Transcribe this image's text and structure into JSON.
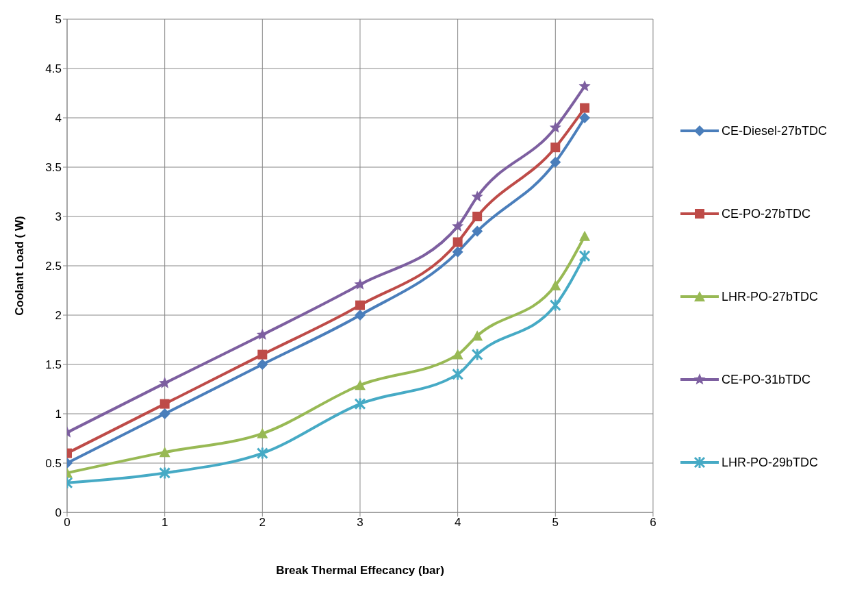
{
  "chart_data": {
    "type": "line",
    "xlabel": "Break Thermal Effecancy (bar)",
    "ylabel": "Coolant Load  ( W)",
    "xlim": [
      0,
      6
    ],
    "xticks": [
      0,
      1,
      2,
      3,
      4,
      5,
      6
    ],
    "ylim": [
      0,
      5
    ],
    "yticks": [
      0,
      0.5,
      1,
      1.5,
      2,
      2.5,
      3,
      3.5,
      4,
      4.5,
      5
    ],
    "grid": true,
    "legend": "right",
    "x": [
      0,
      1,
      2,
      3,
      4,
      4.2,
      5,
      5.3
    ],
    "series": [
      {
        "name": "CE-Diesel-27bTDC",
        "color": "#4a7ebb",
        "marker": "diamond",
        "values": [
          0.5,
          1.0,
          1.5,
          2.0,
          2.64,
          2.85,
          3.55,
          4.0
        ]
      },
      {
        "name": "CE-PO-27bTDC",
        "color": "#be4b48",
        "marker": "square",
        "values": [
          0.6,
          1.1,
          1.6,
          2.1,
          2.74,
          3.0,
          3.7,
          4.1
        ]
      },
      {
        "name": "LHR-PO-27bTDC",
        "color": "#98b954",
        "marker": "triangle",
        "values": [
          0.4,
          0.61,
          0.8,
          1.29,
          1.6,
          1.79,
          2.3,
          2.8
        ]
      },
      {
        "name": "CE-PO-31bTDC",
        "color": "#7d5fa0",
        "marker": "star",
        "values": [
          0.81,
          1.31,
          1.8,
          2.31,
          2.9,
          3.2,
          3.9,
          4.32
        ]
      },
      {
        "name": "LHR-PO-29bTDC",
        "color": "#46aac5",
        "marker": "cross",
        "values": [
          0.3,
          0.4,
          0.6,
          1.1,
          1.4,
          1.6,
          2.1,
          2.6
        ]
      }
    ]
  }
}
